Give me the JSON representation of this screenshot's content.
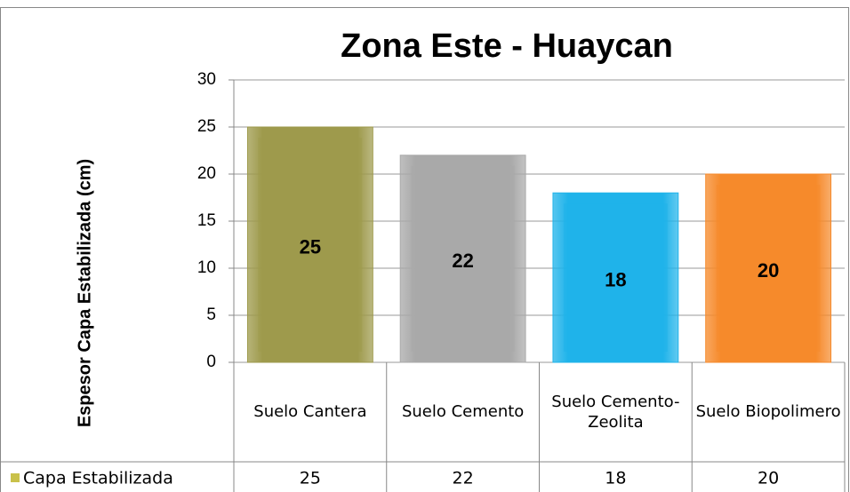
{
  "chart_data": {
    "type": "bar",
    "title": "Zona Este - Huaycan",
    "y_label": "Espesor Capa Estabilizada (cm)",
    "categories": [
      "Suelo Cantera",
      "Suelo Cemento",
      "Suelo Cemento-Zeolita",
      "Suelo Biopolimero"
    ],
    "series": [
      {
        "name": "Capa Estabilizada",
        "color": "#c9c14a",
        "bar_colors": [
          "#9e9a4c",
          "#a9a9a9",
          "#1fb3ea",
          "#f68a2b"
        ],
        "values": [
          25,
          22,
          18,
          20
        ]
      }
    ],
    "ylim": [
      0,
      30
    ],
    "yticks": [
      0,
      5,
      10,
      15,
      20,
      25,
      30
    ],
    "grid": true,
    "data_table": true
  }
}
